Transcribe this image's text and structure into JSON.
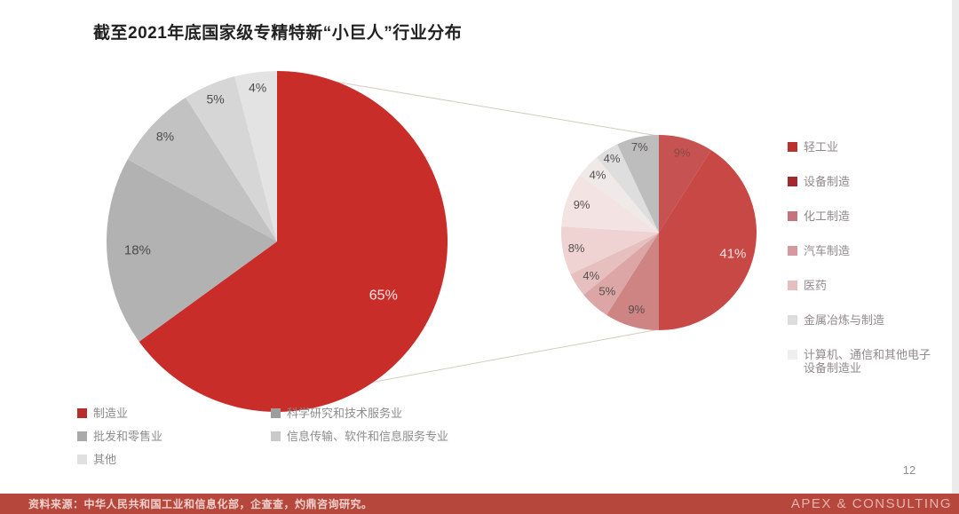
{
  "slide": {
    "title": "截至2021年底国家级专精特新“小巨人”行业分布",
    "page_number": "12",
    "footer_source": "资料来源：中华人民共和国工业和信息化部，企查查，灼鼎咨询研究。",
    "footer_brand": "APEX & CONSULTING"
  },
  "colors": {
    "footer_bar": "#b5473c",
    "footer_source_text": "#f0d0cb",
    "footer_brand_text": "#e8b3ad",
    "title_text": "#212121",
    "page_number_text": "#8f8f8f",
    "connector_line": "#d4cbbe",
    "edge_strip": "#ebebeb"
  },
  "chart_data": [
    {
      "type": "pie",
      "id": "overall-industry-distribution",
      "categories": [
        "制造业",
        "批发和零售业",
        "科学研究和技术服务业",
        "信息传输、软件和信息服务专业",
        "其他"
      ],
      "values": [
        65,
        18,
        8,
        5,
        4
      ],
      "labels": [
        "65%",
        "18%",
        "8%",
        "5%",
        "4%"
      ],
      "colors": [
        "#c92d29",
        "#b2b2b2",
        "#c3c2c2",
        "#d7d6d6",
        "#e4e3e3"
      ],
      "label_colors": [
        "#faeae8",
        "#4c4c4c",
        "#4c4c4c",
        "#4c4c4c",
        "#4c4c4c"
      ],
      "legend": {
        "columns": [
          {
            "items": [
              {
                "label": "制造业",
                "color": "#b5302c"
              },
              {
                "label": "批发和零售业",
                "color": "#a9a9a9"
              },
              {
                "label": "其他",
                "color": "#e0e0e0"
              }
            ]
          },
          {
            "items": [
              {
                "label": "科学研究和技术服务业",
                "color": "#9e9e9e"
              },
              {
                "label": "信息传输、软件和信息服务专业",
                "color": "#c9c9c9"
              }
            ]
          }
        ]
      }
    },
    {
      "type": "pie",
      "id": "manufacturing-breakdown",
      "values": [
        9,
        41,
        9,
        5,
        4,
        8,
        9,
        4,
        4,
        7
      ],
      "labels": [
        "9%",
        "41%",
        "9%",
        "5%",
        "4%",
        "8%",
        "9%",
        "4%",
        "4%",
        "7%"
      ],
      "colors": [
        "#c65352",
        "#c74845",
        "#ce8482",
        "#dba6a5",
        "#e6c0bf",
        "#eed3d2",
        "#f3e3e2",
        "#efe9e8",
        "#dfdede",
        "#bebdbd"
      ],
      "label_colors": [
        "#8a4a45",
        "#f7e3e2",
        "#55504f",
        "#55504f",
        "#55504f",
        "#55504f",
        "#55504f",
        "#55504f",
        "#55504f",
        "#55504f"
      ],
      "legend": {
        "items": [
          {
            "label": "轻工业",
            "color": "#b9322e"
          },
          {
            "label": "设备制造",
            "color": "#a02a2d"
          },
          {
            "label": "化工制造",
            "color": "#c4747b"
          },
          {
            "label": "汽车制造",
            "color": "#d59a9d"
          },
          {
            "label": "医药",
            "color": "#e3bfc0"
          },
          {
            "label": "金属冶炼与制造",
            "color": "#dddddd"
          },
          {
            "label": "计算机、通信和其他电子设备制造业",
            "color": "#efefef"
          }
        ]
      }
    }
  ]
}
